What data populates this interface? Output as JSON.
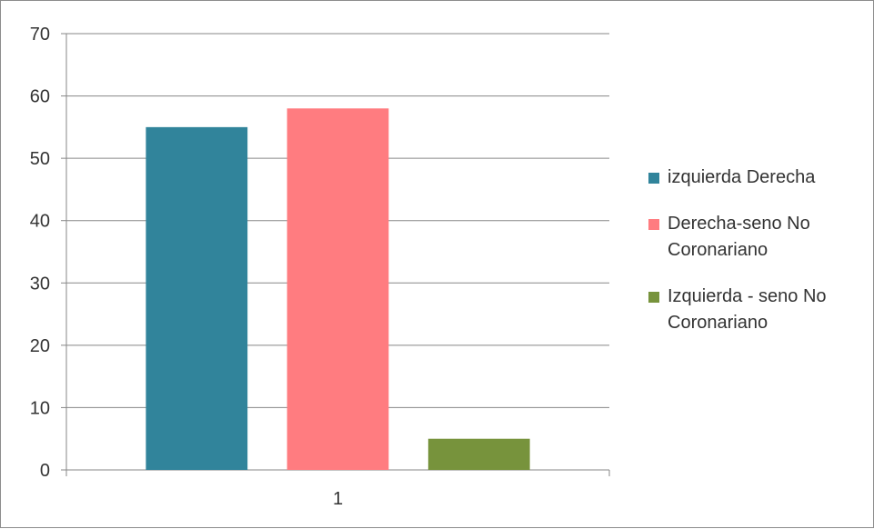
{
  "chart_data": {
    "type": "bar",
    "categories": [
      "1"
    ],
    "series": [
      {
        "name": "izquierda Derecha",
        "values": [
          55
        ],
        "color": "#31849b"
      },
      {
        "name": "Derecha-seno No Coronariano",
        "values": [
          58
        ],
        "color": "#ff7c80"
      },
      {
        "name": "Izquierda - seno No Coronariano",
        "values": [
          5
        ],
        "color": "#77933c"
      }
    ],
    "title": "",
    "xlabel": "",
    "ylabel": "",
    "ylim": [
      0,
      70
    ],
    "yticks": [
      "0",
      "10",
      "20",
      "30",
      "40",
      "50",
      "60",
      "70"
    ],
    "grid": true,
    "legend_position": "right"
  }
}
